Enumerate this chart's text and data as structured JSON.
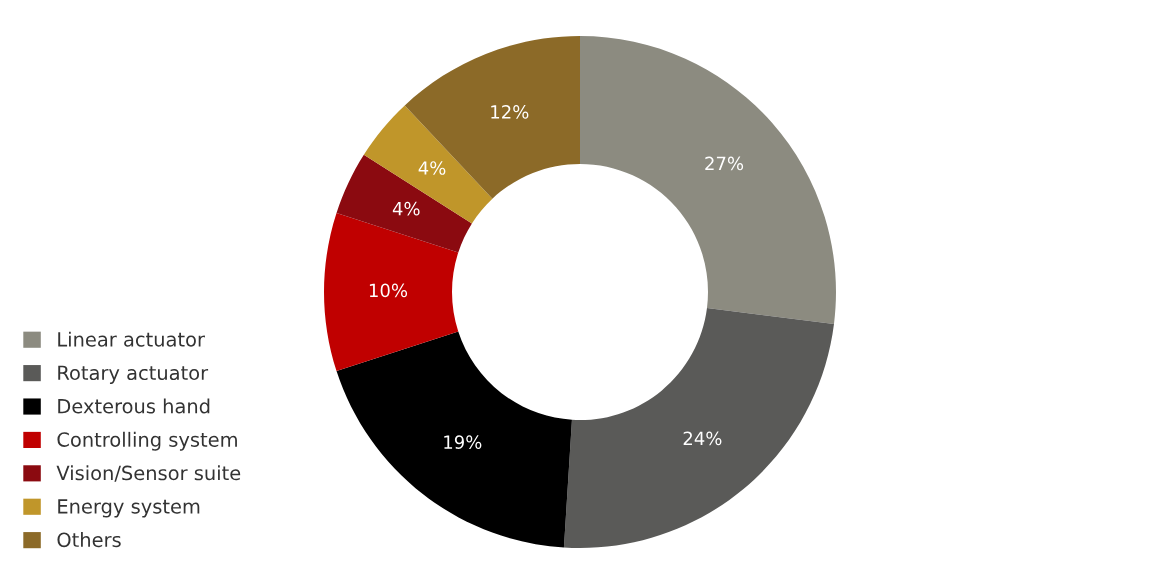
{
  "chart_data": {
    "type": "donut",
    "categories": [
      "Linear actuator",
      "Rotary actuator",
      "Dexterous hand",
      "Controlling system",
      "Vision/Sensor suite",
      "Energy system",
      "Others"
    ],
    "values": [
      27,
      24,
      19,
      10,
      4,
      4,
      12
    ],
    "colors": [
      "#8c8b80",
      "#5a5a58",
      "#000000",
      "#c00000",
      "#8b0a10",
      "#c0962a",
      "#8c6a28"
    ],
    "value_labels": [
      "27%",
      "24%",
      "19%",
      "10%",
      "4%",
      "4%",
      "12%"
    ],
    "legend": "bottom left"
  }
}
